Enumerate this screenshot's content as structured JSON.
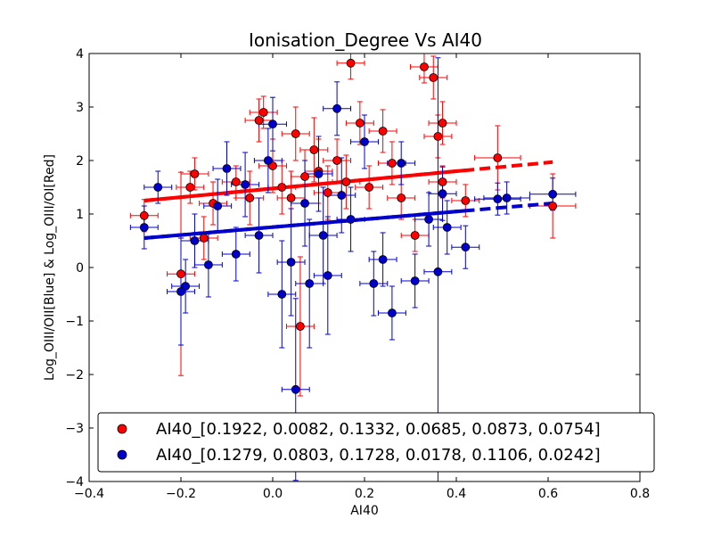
{
  "chart_data": {
    "type": "scatter",
    "title": "Ionisation_Degree Vs AI40",
    "xlabel": "AI40",
    "ylabel": "Log_OIII/OII[Blue] & Log_OIII/OI[Red]",
    "xlim": [
      -0.4,
      0.8
    ],
    "ylim": [
      -4,
      4
    ],
    "xticks": [
      -0.4,
      -0.2,
      0.0,
      0.2,
      0.4,
      0.6,
      0.8
    ],
    "xtick_labels": [
      "−0.4",
      "−0.2",
      "0.0",
      "0.2",
      "0.4",
      "0.6",
      "0.8"
    ],
    "yticks": [
      -4,
      -3,
      -2,
      -1,
      0,
      1,
      2,
      3,
      4
    ],
    "ytick_labels": [
      "−4",
      "−3",
      "−2",
      "−1",
      "0",
      "1",
      "2",
      "3",
      "4"
    ],
    "grid": false,
    "legend_position": "lower-right",
    "series": [
      {
        "name": "AI40_[0.1922, 0.0082, 0.1332, 0.0685, 0.0873, 0.0754]",
        "color": "#ff0000",
        "edge_color": "#000000",
        "points": [
          {
            "x": -0.28,
            "y": 0.97,
            "xerr": 0.03,
            "yerr": 0.3
          },
          {
            "x": -0.2,
            "y": -0.12,
            "xerr": 0.03,
            "yerr": 1.9
          },
          {
            "x": -0.18,
            "y": 1.5,
            "xerr": 0.03,
            "yerr": 0.3
          },
          {
            "x": -0.17,
            "y": 1.75,
            "xerr": 0.03,
            "yerr": 0.3
          },
          {
            "x": -0.15,
            "y": 0.55,
            "xerr": 0.03,
            "yerr": 0.4
          },
          {
            "x": -0.13,
            "y": 1.2,
            "xerr": 0.03,
            "yerr": 0.4
          },
          {
            "x": -0.08,
            "y": 1.6,
            "xerr": 0.03,
            "yerr": 0.3
          },
          {
            "x": -0.05,
            "y": 1.3,
            "xerr": 0.03,
            "yerr": 0.5
          },
          {
            "x": -0.03,
            "y": 2.75,
            "xerr": 0.03,
            "yerr": 0.4
          },
          {
            "x": -0.02,
            "y": 2.9,
            "xerr": 0.03,
            "yerr": 0.3
          },
          {
            "x": 0.0,
            "y": 1.9,
            "xerr": 0.03,
            "yerr": 0.5
          },
          {
            "x": 0.02,
            "y": 1.5,
            "xerr": 0.03,
            "yerr": 0.5
          },
          {
            "x": 0.04,
            "y": 1.3,
            "xerr": 0.03,
            "yerr": 0.5
          },
          {
            "x": 0.05,
            "y": 2.5,
            "xerr": 0.03,
            "yerr": 0.5
          },
          {
            "x": 0.06,
            "y": -1.1,
            "xerr": 0.03,
            "yerr": 1.3
          },
          {
            "x": 0.07,
            "y": 1.7,
            "xerr": 0.03,
            "yerr": 0.5
          },
          {
            "x": 0.09,
            "y": 2.2,
            "xerr": 0.03,
            "yerr": 0.6
          },
          {
            "x": 0.1,
            "y": 1.8,
            "xerr": 0.03,
            "yerr": 0.6
          },
          {
            "x": 0.12,
            "y": 1.4,
            "xerr": 0.03,
            "yerr": 0.5
          },
          {
            "x": 0.14,
            "y": 2.0,
            "xerr": 0.03,
            "yerr": 0.4
          },
          {
            "x": 0.16,
            "y": 1.6,
            "xerr": 0.03,
            "yerr": 0.5
          },
          {
            "x": 0.17,
            "y": 3.82,
            "xerr": 0.03,
            "yerr": 0.3
          },
          {
            "x": 0.19,
            "y": 2.7,
            "xerr": 0.03,
            "yerr": 0.4
          },
          {
            "x": 0.21,
            "y": 1.5,
            "xerr": 0.03,
            "yerr": 0.4
          },
          {
            "x": 0.24,
            "y": 2.55,
            "xerr": 0.03,
            "yerr": 0.4
          },
          {
            "x": 0.26,
            "y": 1.95,
            "xerr": 0.03,
            "yerr": 0.4
          },
          {
            "x": 0.28,
            "y": 1.3,
            "xerr": 0.03,
            "yerr": 0.4
          },
          {
            "x": 0.31,
            "y": 0.6,
            "xerr": 0.03,
            "yerr": 0.3
          },
          {
            "x": 0.33,
            "y": 3.75,
            "xerr": 0.03,
            "yerr": 0.3
          },
          {
            "x": 0.35,
            "y": 3.55,
            "xerr": 0.03,
            "yerr": 0.4
          },
          {
            "x": 0.36,
            "y": 2.45,
            "xerr": 0.03,
            "yerr": 0.4
          },
          {
            "x": 0.37,
            "y": 2.7,
            "xerr": 0.03,
            "yerr": 0.4
          },
          {
            "x": 0.37,
            "y": 1.6,
            "xerr": 0.03,
            "yerr": 0.3
          },
          {
            "x": 0.42,
            "y": 1.25,
            "xerr": 0.03,
            "yerr": 0.3
          },
          {
            "x": 0.49,
            "y": 2.05,
            "xerr": 0.05,
            "yerr": 0.6
          },
          {
            "x": 0.61,
            "y": 1.15,
            "xerr": 0.05,
            "yerr": 0.6
          }
        ],
        "fit": {
          "x0": -0.28,
          "y0": 1.25,
          "x1": 0.61,
          "y1": 1.97,
          "solid_until": 0.42
        }
      },
      {
        "name": "AI40_[0.1279, 0.0803, 0.1728, 0.0178, 0.1106, 0.0242]",
        "color": "#0000cc",
        "edge_color": "#000000",
        "points": [
          {
            "x": -0.28,
            "y": 0.75,
            "xerr": 0.03,
            "yerr": 0.4
          },
          {
            "x": -0.25,
            "y": 1.5,
            "xerr": 0.03,
            "yerr": 0.3
          },
          {
            "x": -0.2,
            "y": -0.45,
            "xerr": 0.03,
            "yerr": 1.0
          },
          {
            "x": -0.19,
            "y": -0.35,
            "xerr": 0.03,
            "yerr": 0.5
          },
          {
            "x": -0.17,
            "y": 0.5,
            "xerr": 0.03,
            "yerr": 0.5
          },
          {
            "x": -0.14,
            "y": 0.05,
            "xerr": 0.03,
            "yerr": 0.6
          },
          {
            "x": -0.12,
            "y": 1.15,
            "xerr": 0.03,
            "yerr": 0.5
          },
          {
            "x": -0.1,
            "y": 1.85,
            "xerr": 0.03,
            "yerr": 0.5
          },
          {
            "x": -0.08,
            "y": 0.25,
            "xerr": 0.03,
            "yerr": 0.5
          },
          {
            "x": -0.06,
            "y": 1.55,
            "xerr": 0.03,
            "yerr": 0.6
          },
          {
            "x": -0.03,
            "y": 0.6,
            "xerr": 0.03,
            "yerr": 0.7
          },
          {
            "x": -0.01,
            "y": 2.0,
            "xerr": 0.03,
            "yerr": 0.6
          },
          {
            "x": 0.0,
            "y": 2.68,
            "xerr": 0.03,
            "yerr": 0.5
          },
          {
            "x": 0.02,
            "y": -0.5,
            "xerr": 0.03,
            "yerr": 1.0
          },
          {
            "x": 0.04,
            "y": 0.1,
            "xerr": 0.03,
            "yerr": 1.0
          },
          {
            "x": 0.05,
            "y": -2.28,
            "xerr": 0.03,
            "yerr": 1.7
          },
          {
            "x": 0.07,
            "y": 1.2,
            "xerr": 0.03,
            "yerr": 0.8
          },
          {
            "x": 0.08,
            "y": -0.3,
            "xerr": 0.03,
            "yerr": 1.2
          },
          {
            "x": 0.1,
            "y": 1.75,
            "xerr": 0.03,
            "yerr": 0.7
          },
          {
            "x": 0.11,
            "y": 0.6,
            "xerr": 0.03,
            "yerr": 0.9
          },
          {
            "x": 0.12,
            "y": -0.15,
            "xerr": 0.03,
            "yerr": 1.1
          },
          {
            "x": 0.14,
            "y": 2.97,
            "xerr": 0.03,
            "yerr": 0.5
          },
          {
            "x": 0.15,
            "y": 1.35,
            "xerr": 0.03,
            "yerr": 0.7
          },
          {
            "x": 0.17,
            "y": 0.9,
            "xerr": 0.03,
            "yerr": 0.6
          },
          {
            "x": 0.2,
            "y": 2.35,
            "xerr": 0.03,
            "yerr": 0.5
          },
          {
            "x": 0.22,
            "y": -0.3,
            "xerr": 0.03,
            "yerr": 0.6
          },
          {
            "x": 0.24,
            "y": 0.15,
            "xerr": 0.03,
            "yerr": 0.5
          },
          {
            "x": 0.26,
            "y": -0.85,
            "xerr": 0.03,
            "yerr": 0.5
          },
          {
            "x": 0.28,
            "y": 1.95,
            "xerr": 0.03,
            "yerr": 0.4
          },
          {
            "x": 0.31,
            "y": -0.25,
            "xerr": 0.03,
            "yerr": 0.5
          },
          {
            "x": 0.34,
            "y": 0.9,
            "xerr": 0.03,
            "yerr": 0.5
          },
          {
            "x": 0.36,
            "y": -0.08,
            "xerr": 0.03,
            "yerr": 4.0
          },
          {
            "x": 0.37,
            "y": 1.38,
            "xerr": 0.03,
            "yerr": 0.5
          },
          {
            "x": 0.38,
            "y": 0.75,
            "xerr": 0.03,
            "yerr": 0.5
          },
          {
            "x": 0.42,
            "y": 0.38,
            "xerr": 0.03,
            "yerr": 0.4
          },
          {
            "x": 0.49,
            "y": 1.28,
            "xerr": 0.05,
            "yerr": 0.3
          },
          {
            "x": 0.51,
            "y": 1.3,
            "xerr": 0.05,
            "yerr": 0.3
          },
          {
            "x": 0.61,
            "y": 1.37,
            "xerr": 0.05,
            "yerr": 0.3
          }
        ],
        "fit": {
          "x0": -0.28,
          "y0": 0.55,
          "x1": 0.61,
          "y1": 1.2,
          "solid_until": 0.42
        }
      }
    ]
  }
}
